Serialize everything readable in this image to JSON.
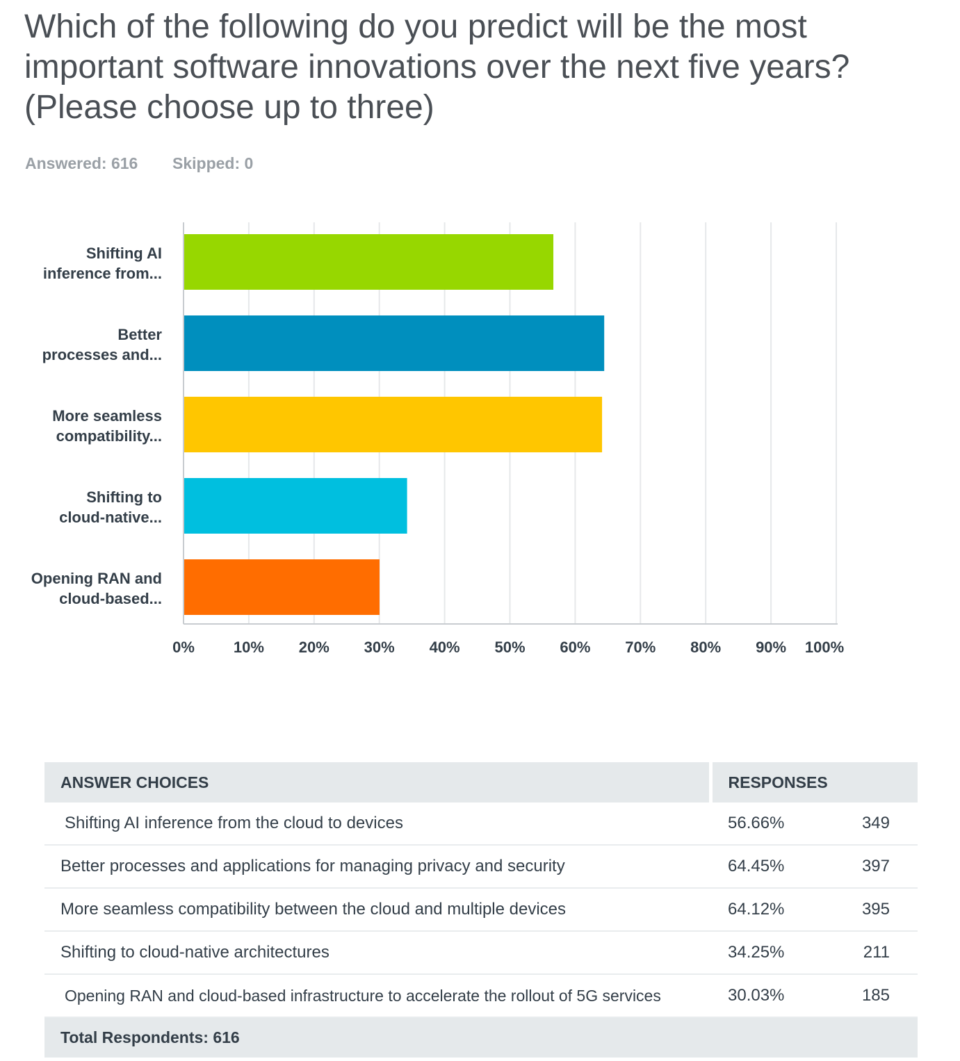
{
  "question": {
    "title": "Which of the following do you predict will be the most important software innovations over the next five years? (Please choose up to three)",
    "answered_label": "Answered: 616",
    "skipped_label": "Skipped: 0"
  },
  "chart_data": {
    "type": "bar",
    "orientation": "horizontal",
    "categories": [
      [
        "Shifting AI",
        "inference from..."
      ],
      [
        "Better",
        "processes and..."
      ],
      [
        "More seamless",
        "compatibility..."
      ],
      [
        "Shifting to",
        "cloud-native..."
      ],
      [
        "Opening RAN and",
        "cloud-based..."
      ]
    ],
    "values": [
      56.66,
      64.45,
      64.12,
      34.25,
      30.03
    ],
    "colors": [
      "#97d700",
      "#008fbe",
      "#ffc600",
      "#00bfdf",
      "#ff6d00"
    ],
    "xlim": [
      0,
      100
    ],
    "xticks": [
      "0%",
      "10%",
      "20%",
      "30%",
      "40%",
      "50%",
      "60%",
      "70%",
      "80%",
      "90%",
      "100%"
    ],
    "grid": true
  },
  "table": {
    "headers": {
      "choices": "ANSWER CHOICES",
      "responses": "RESPONSES"
    },
    "rows": [
      {
        "choice": "Shifting AI inference from the cloud to devices",
        "percent": "56.66%",
        "count": "349"
      },
      {
        "choice": "Better processes and applications for managing privacy and security",
        "percent": "64.45%",
        "count": "397"
      },
      {
        "choice": "More seamless compatibility between the cloud and multiple devices",
        "percent": "64.12%",
        "count": "395"
      },
      {
        "choice": "Shifting to cloud-native architectures",
        "percent": "34.25%",
        "count": "211"
      },
      {
        "choice": "Opening RAN and cloud-based infrastructure to accelerate the rollout of 5G services",
        "percent": "30.03%",
        "count": "185"
      }
    ],
    "total_label": "Total Respondents: 616"
  }
}
